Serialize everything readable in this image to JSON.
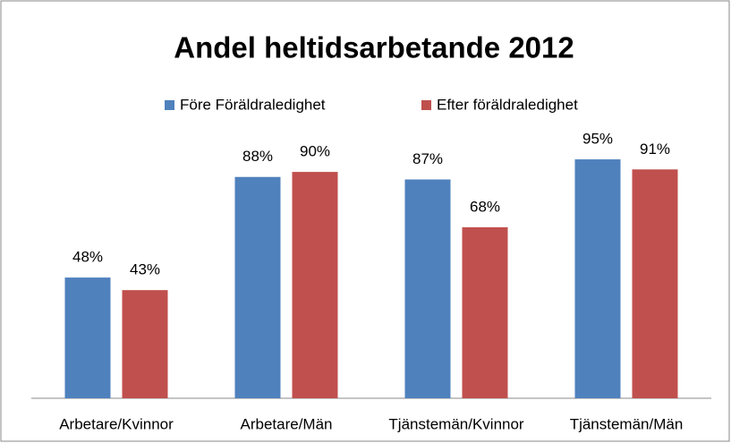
{
  "chart_data": {
    "type": "bar",
    "title": "Andel heltidsarbetande 2012",
    "categories": [
      "Arbetare/Kvinnor",
      "Arbetare/Män",
      "Tjänstemän/Kvinnor",
      "Tjänstemän/Män"
    ],
    "series": [
      {
        "name": "Före Föräldraledighet",
        "color": "#4f81bd",
        "values": [
          48,
          88,
          87,
          95
        ],
        "value_labels": [
          "48%",
          "88%",
          "87%",
          "95%"
        ]
      },
      {
        "name": "Efter föräldraledighet",
        "color": "#c0504d",
        "values": [
          43,
          90,
          68,
          91
        ],
        "value_labels": [
          "43%",
          "90%",
          "68%",
          "91%"
        ]
      }
    ],
    "ylim": [
      0,
      100
    ],
    "legend": "top"
  }
}
